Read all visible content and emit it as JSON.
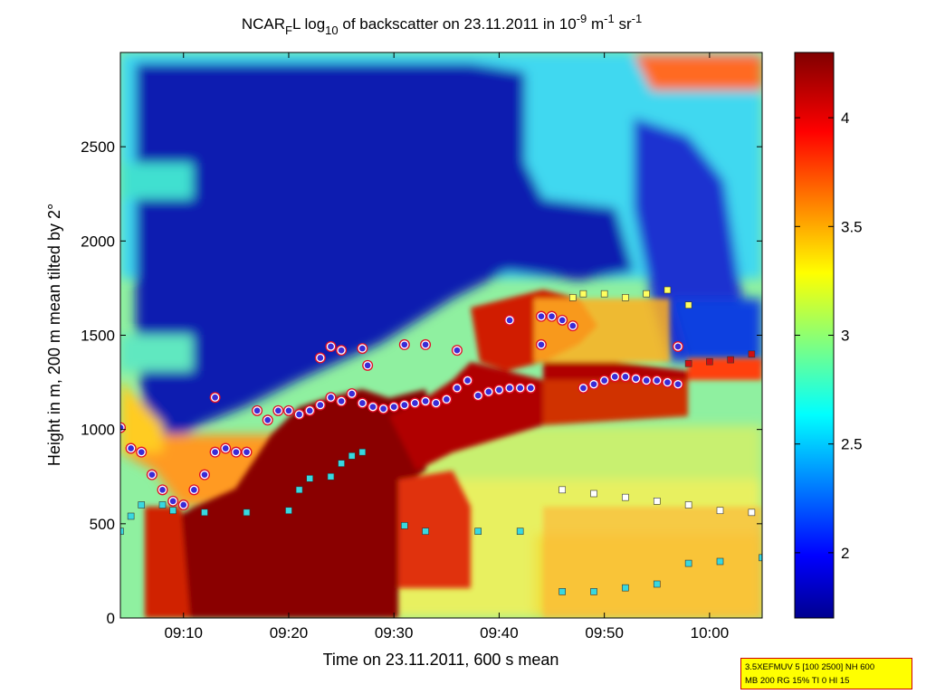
{
  "chart_data": {
    "type": "heatmap",
    "title": "NCARFL log10 of backscatter on 23.11.2011 in 10^-9 m^-1 sr^-1",
    "title_parts": {
      "pre": "NCAR",
      "sub1": "F",
      "mid1": "L log",
      "sub2": "10",
      "mid2": " of backscatter on 23.11.2011 in 10",
      "sup1": "-9",
      "mid3": " m",
      "sup2": "-1",
      "mid4": " sr",
      "sup3": "-1"
    },
    "xlabel": "Time on 23.11.2011, 600 s mean",
    "ylabel": "Height in m, 200 m mean tilted by 2°",
    "xlim": [
      "09:04",
      "10:05"
    ],
    "ylim": [
      0,
      3000
    ],
    "x_ticks": [
      "09:10",
      "09:20",
      "09:30",
      "09:40",
      "09:50",
      "10:00"
    ],
    "y_ticks": [
      "0",
      "500",
      "1000",
      "1500",
      "2000",
      "2500"
    ],
    "colorbar": {
      "range": [
        1.7,
        4.3
      ],
      "ticks": [
        "2",
        "2.5",
        "3",
        "3.5",
        "4"
      ],
      "colormap": "jet"
    },
    "regions": [
      {
        "name": "upper clear air",
        "x": [
          "09:09",
          "09:42"
        ],
        "y": [
          1900,
          2950
        ],
        "value": 1.8
      },
      {
        "name": "dense boundary layer",
        "x": [
          "09:14",
          "09:33"
        ],
        "y": [
          0,
          1050
        ],
        "value": 4.3
      },
      {
        "name": "cloud layer",
        "x": [
          "09:43",
          "09:58"
        ],
        "y": [
          1200,
          1700
        ],
        "value": 4.2
      },
      {
        "name": "upper-right cloud",
        "x": [
          "09:56",
          "10:05"
        ],
        "y": [
          2700,
          2950
        ],
        "value": 4.0
      }
    ],
    "series": [
      {
        "name": "layer top (blue circles)",
        "marker": "circle",
        "points": [
          [
            "09:04",
            1010
          ],
          [
            "09:05",
            900
          ],
          [
            "09:06",
            880
          ],
          [
            "09:07",
            760
          ],
          [
            "09:08",
            680
          ],
          [
            "09:09",
            620
          ],
          [
            "09:10",
            600
          ],
          [
            "09:11",
            680
          ],
          [
            "09:12",
            760
          ],
          [
            "09:13",
            880
          ],
          [
            "09:14",
            900
          ],
          [
            "09:15",
            880
          ],
          [
            "09:16",
            880
          ],
          [
            "09:17",
            1100
          ],
          [
            "09:18",
            1050
          ],
          [
            "09:19",
            1100
          ],
          [
            "09:20",
            1100
          ],
          [
            "09:21",
            1080
          ],
          [
            "09:22",
            1100
          ],
          [
            "09:23",
            1130
          ],
          [
            "09:24",
            1170
          ],
          [
            "09:25",
            1150
          ],
          [
            "09:26",
            1190
          ],
          [
            "09:27",
            1140
          ],
          [
            "09:28",
            1120
          ],
          [
            "09:29",
            1110
          ],
          [
            "09:30",
            1120
          ],
          [
            "09:31",
            1130
          ],
          [
            "09:32",
            1140
          ],
          [
            "09:33",
            1150
          ],
          [
            "09:34",
            1140
          ],
          [
            "09:35",
            1160
          ],
          [
            "09:36",
            1220
          ],
          [
            "09:37",
            1260
          ],
          [
            "09:38",
            1180
          ],
          [
            "09:39",
            1200
          ],
          [
            "09:40",
            1210
          ],
          [
            "09:41",
            1220
          ],
          [
            "09:42",
            1220
          ],
          [
            "09:43",
            1220
          ],
          [
            "09:44",
            1600
          ],
          [
            "09:45",
            1600
          ],
          [
            "09:46",
            1580
          ],
          [
            "09:47",
            1550
          ],
          [
            "09:48",
            1220
          ],
          [
            "09:49",
            1240
          ],
          [
            "09:50",
            1260
          ],
          [
            "09:51",
            1280
          ],
          [
            "09:52",
            1280
          ],
          [
            "09:53",
            1270
          ],
          [
            "09:54",
            1260
          ],
          [
            "09:55",
            1260
          ],
          [
            "09:56",
            1250
          ],
          [
            "09:57",
            1240
          ]
        ]
      },
      {
        "name": "upper layer (circles, scattered)",
        "marker": "circle",
        "points": [
          [
            "09:13",
            1170
          ],
          [
            "09:23",
            1380
          ],
          [
            "09:24",
            1440
          ],
          [
            "09:25",
            1420
          ],
          [
            "09:27",
            1430
          ],
          [
            "09:27.5",
            1340
          ],
          [
            "09:31",
            1450
          ],
          [
            "09:33",
            1450
          ],
          [
            "09:36",
            1420
          ],
          [
            "09:41",
            1580
          ],
          [
            "09:44",
            1450
          ],
          [
            "09:57",
            1440
          ]
        ]
      },
      {
        "name": "lower layer (cyan squares)",
        "marker": "square",
        "points": [
          [
            "09:04",
            460
          ],
          [
            "09:05",
            540
          ],
          [
            "09:06",
            600
          ],
          [
            "09:08",
            600
          ],
          [
            "09:09",
            570
          ],
          [
            "09:12",
            560
          ],
          [
            "09:16",
            560
          ],
          [
            "09:20",
            570
          ],
          [
            "09:21",
            680
          ],
          [
            "09:22",
            740
          ],
          [
            "09:24",
            750
          ],
          [
            "09:25",
            820
          ],
          [
            "09:26",
            860
          ],
          [
            "09:27",
            880
          ],
          [
            "09:31",
            490
          ],
          [
            "09:33",
            460
          ],
          [
            "09:38",
            460
          ],
          [
            "09:42",
            460
          ],
          [
            "09:46",
            140
          ],
          [
            "09:49",
            140
          ],
          [
            "09:52",
            160
          ],
          [
            "09:55",
            180
          ],
          [
            "09:58",
            290
          ],
          [
            "10:01",
            300
          ],
          [
            "10:05",
            320
          ]
        ]
      },
      {
        "name": "mid layer (white squares)",
        "marker": "square",
        "points": [
          [
            "09:46",
            680
          ],
          [
            "09:49",
            660
          ],
          [
            "09:52",
            640
          ],
          [
            "09:55",
            620
          ],
          [
            "09:58",
            600
          ],
          [
            "10:01",
            570
          ],
          [
            "10:04",
            560
          ]
        ]
      },
      {
        "name": "cloud top (yellow/red squares)",
        "marker": "square",
        "points": [
          [
            "09:47",
            1700
          ],
          [
            "09:48",
            1720
          ],
          [
            "09:50",
            1720
          ],
          [
            "09:52",
            1700
          ],
          [
            "09:54",
            1720
          ],
          [
            "09:56",
            1740
          ],
          [
            "09:58",
            1660
          ],
          [
            "09:58",
            1350
          ],
          [
            "10:00",
            1360
          ],
          [
            "10:02",
            1370
          ],
          [
            "10:04",
            1400
          ]
        ]
      }
    ]
  },
  "info_box": {
    "line1": "3.5XEFMUV 5 [100 2500] NH 600",
    "line2": "MB 200 RG 15% TI 0 HI 15"
  },
  "colors": {
    "circle_fill": "#3a2bd6",
    "circle_edge": "#ffffff",
    "circle_ring": "#e0102a",
    "cyan_square": "#38d8e0",
    "info_box_bg": "#ffff00",
    "info_box_border": "#d00000"
  }
}
